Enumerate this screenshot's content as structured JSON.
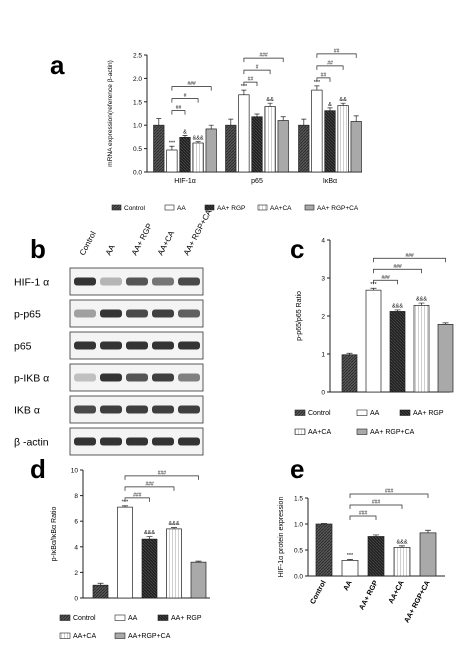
{
  "panel_labels": {
    "a": "a",
    "b": "b",
    "c": "c",
    "d": "d",
    "e": "e"
  },
  "colors": {
    "control": "#4a4a4a",
    "aa": "#ffffff",
    "aa_rgp": "#2b2b2b",
    "aa_ca": "#f3f3f3",
    "aa_rgp_ca": "#a9a9a9",
    "axis": "#222222"
  },
  "chart_data": [
    {
      "id": "a",
      "type": "bar",
      "ylabel": "mRNA expression(reference β-actin)",
      "ylim": [
        0,
        2.5
      ],
      "yticks": [
        "0.0",
        "0.5",
        "1.0",
        "1.5",
        "2.0",
        "2.5"
      ],
      "categories": [
        "HIF-1α",
        "p65",
        "IκBα"
      ],
      "legend": [
        "Control",
        "AA",
        "AA+ RGP",
        "AA+CA",
        "AA+ RGP+CA"
      ],
      "series": [
        {
          "name": "Control",
          "values": [
            1.0,
            1.0,
            1.0
          ],
          "errors": [
            0.14,
            0.13,
            0.13
          ]
        },
        {
          "name": "AA",
          "values": [
            0.47,
            1.65,
            1.75
          ],
          "errors": [
            0.08,
            0.1,
            0.09
          ]
        },
        {
          "name": "AA+ RGP",
          "values": [
            0.74,
            1.18,
            1.31
          ],
          "errors": [
            0.04,
            0.06,
            0.06
          ]
        },
        {
          "name": "AA+CA",
          "values": [
            0.62,
            1.4,
            1.42
          ],
          "errors": [
            0.03,
            0.07,
            0.05
          ]
        },
        {
          "name": "AA+ RGP+CA",
          "values": [
            0.92,
            1.1,
            1.08
          ],
          "errors": [
            0.08,
            0.08,
            0.12
          ]
        }
      ],
      "bar_labels": [
        [
          "",
          "***",
          "&",
          "&&&",
          ""
        ],
        [
          "",
          "***",
          "",
          "&&",
          ""
        ],
        [
          "",
          "***",
          "&",
          "&&",
          ""
        ]
      ],
      "brackets": [
        [
          "##",
          "#",
          "###"
        ],
        [
          "##",
          "#",
          "###"
        ],
        [
          "##",
          "##",
          "##"
        ]
      ]
    },
    {
      "id": "c",
      "type": "bar",
      "ylabel": "p-p65/p65 Ratio",
      "ylim": [
        0,
        4
      ],
      "yticks": [
        "0",
        "1",
        "2",
        "3",
        "4"
      ],
      "categories": [
        "Control",
        "AA",
        "AA+ RGP",
        "AA+CA",
        "AA+ RGP+CA"
      ],
      "legend": [
        "Control",
        "AA",
        "AA+ RGP",
        "AA+CA",
        "AA+ RGP+CA"
      ],
      "values": [
        0.98,
        2.68,
        2.12,
        2.28,
        1.78
      ],
      "errors": [
        0.04,
        0.05,
        0.04,
        0.06,
        0.04
      ],
      "bar_labels": [
        "",
        "***",
        "&&&",
        "&&&",
        ""
      ],
      "brackets": [
        "###",
        "###",
        "###"
      ]
    },
    {
      "id": "d",
      "type": "bar",
      "ylabel": "p-IκBα/IκBα Ratio",
      "ylim": [
        0,
        10
      ],
      "yticks": [
        "0",
        "2",
        "4",
        "6",
        "8",
        "10"
      ],
      "categories": [
        "Control",
        "AA",
        "AA+ RGP",
        "AA+CA",
        "AA+ RGP+CA"
      ],
      "legend": [
        "Control",
        "AA",
        "AA+ RGP",
        "AA+CA",
        "AA+RGP+CA"
      ],
      "values": [
        1.0,
        7.1,
        4.6,
        5.4,
        2.8
      ],
      "errors": [
        0.15,
        0.1,
        0.2,
        0.1,
        0.08
      ],
      "bar_labels": [
        "",
        "***",
        "&&&",
        "&&&",
        ""
      ],
      "brackets": [
        "###",
        "###",
        "###"
      ]
    },
    {
      "id": "e",
      "type": "bar",
      "ylabel": "HIF-1α protein expression",
      "ylim": [
        0,
        1.5
      ],
      "yticks": [
        "0.0",
        "0.5",
        "1.0",
        "1.5"
      ],
      "categories": [
        "Control",
        "AA",
        "AA+ RGP",
        "AA+CA",
        "AA+ RGP+CA"
      ],
      "values": [
        1.0,
        0.3,
        0.76,
        0.55,
        0.83
      ],
      "errors": [
        0.01,
        0.02,
        0.03,
        0.03,
        0.05
      ],
      "bar_labels": [
        "",
        "***",
        "",
        "&&&",
        ""
      ],
      "brackets": [
        "###",
        "###",
        "###"
      ]
    }
  ],
  "blot": {
    "lanes": [
      "Control",
      "AA",
      "AA+ RGP",
      "AA+CA",
      "AA+ RGP+CA"
    ],
    "rows": [
      {
        "label": "HIF-1 α",
        "intensities": [
          0.85,
          0.25,
          0.7,
          0.55,
          0.75
        ]
      },
      {
        "label": "p-p65",
        "intensities": [
          0.35,
          0.85,
          0.75,
          0.8,
          0.65
        ]
      },
      {
        "label": "p65",
        "intensities": [
          0.85,
          0.85,
          0.85,
          0.85,
          0.85
        ]
      },
      {
        "label": "p-IKB α",
        "intensities": [
          0.2,
          0.85,
          0.7,
          0.8,
          0.5
        ]
      },
      {
        "label": "IKB α",
        "intensities": [
          0.75,
          0.8,
          0.8,
          0.8,
          0.8
        ]
      },
      {
        "label": "β -actin",
        "intensities": [
          0.85,
          0.85,
          0.85,
          0.85,
          0.85
        ]
      }
    ]
  }
}
